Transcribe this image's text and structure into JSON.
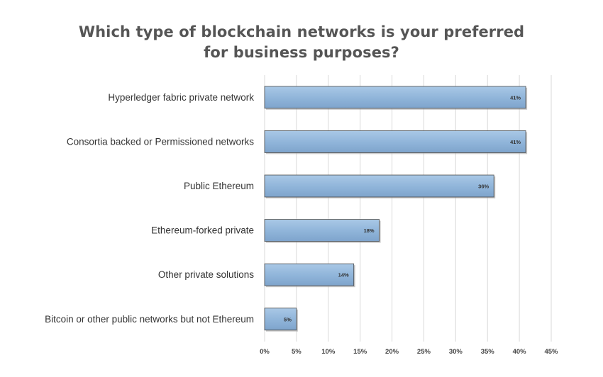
{
  "chart_data": {
    "type": "bar",
    "orientation": "horizontal",
    "title_lines": [
      "Which type of blockchain networks is your preferred",
      "for business purposes?"
    ],
    "categories": [
      "Hyperledger fabric private network",
      "Consortia backed or Permissioned networks",
      "Public Ethereum",
      "Ethereum-forked private",
      "Other private solutions",
      "Bitcoin or other public networks but not Ethereum"
    ],
    "values": [
      41,
      41,
      36,
      18,
      14,
      5
    ],
    "value_labels": [
      "41%",
      "41%",
      "36%",
      "18%",
      "14%",
      "5%"
    ],
    "xticks": [
      "0%",
      "5%",
      "10%",
      "15%",
      "20%",
      "25%",
      "30%",
      "35%",
      "40%",
      "45%"
    ],
    "xlim": [
      0,
      45
    ],
    "grid": true,
    "bar_color": "#8fb4d9",
    "bar_edge_color": "#4a4a4a"
  }
}
